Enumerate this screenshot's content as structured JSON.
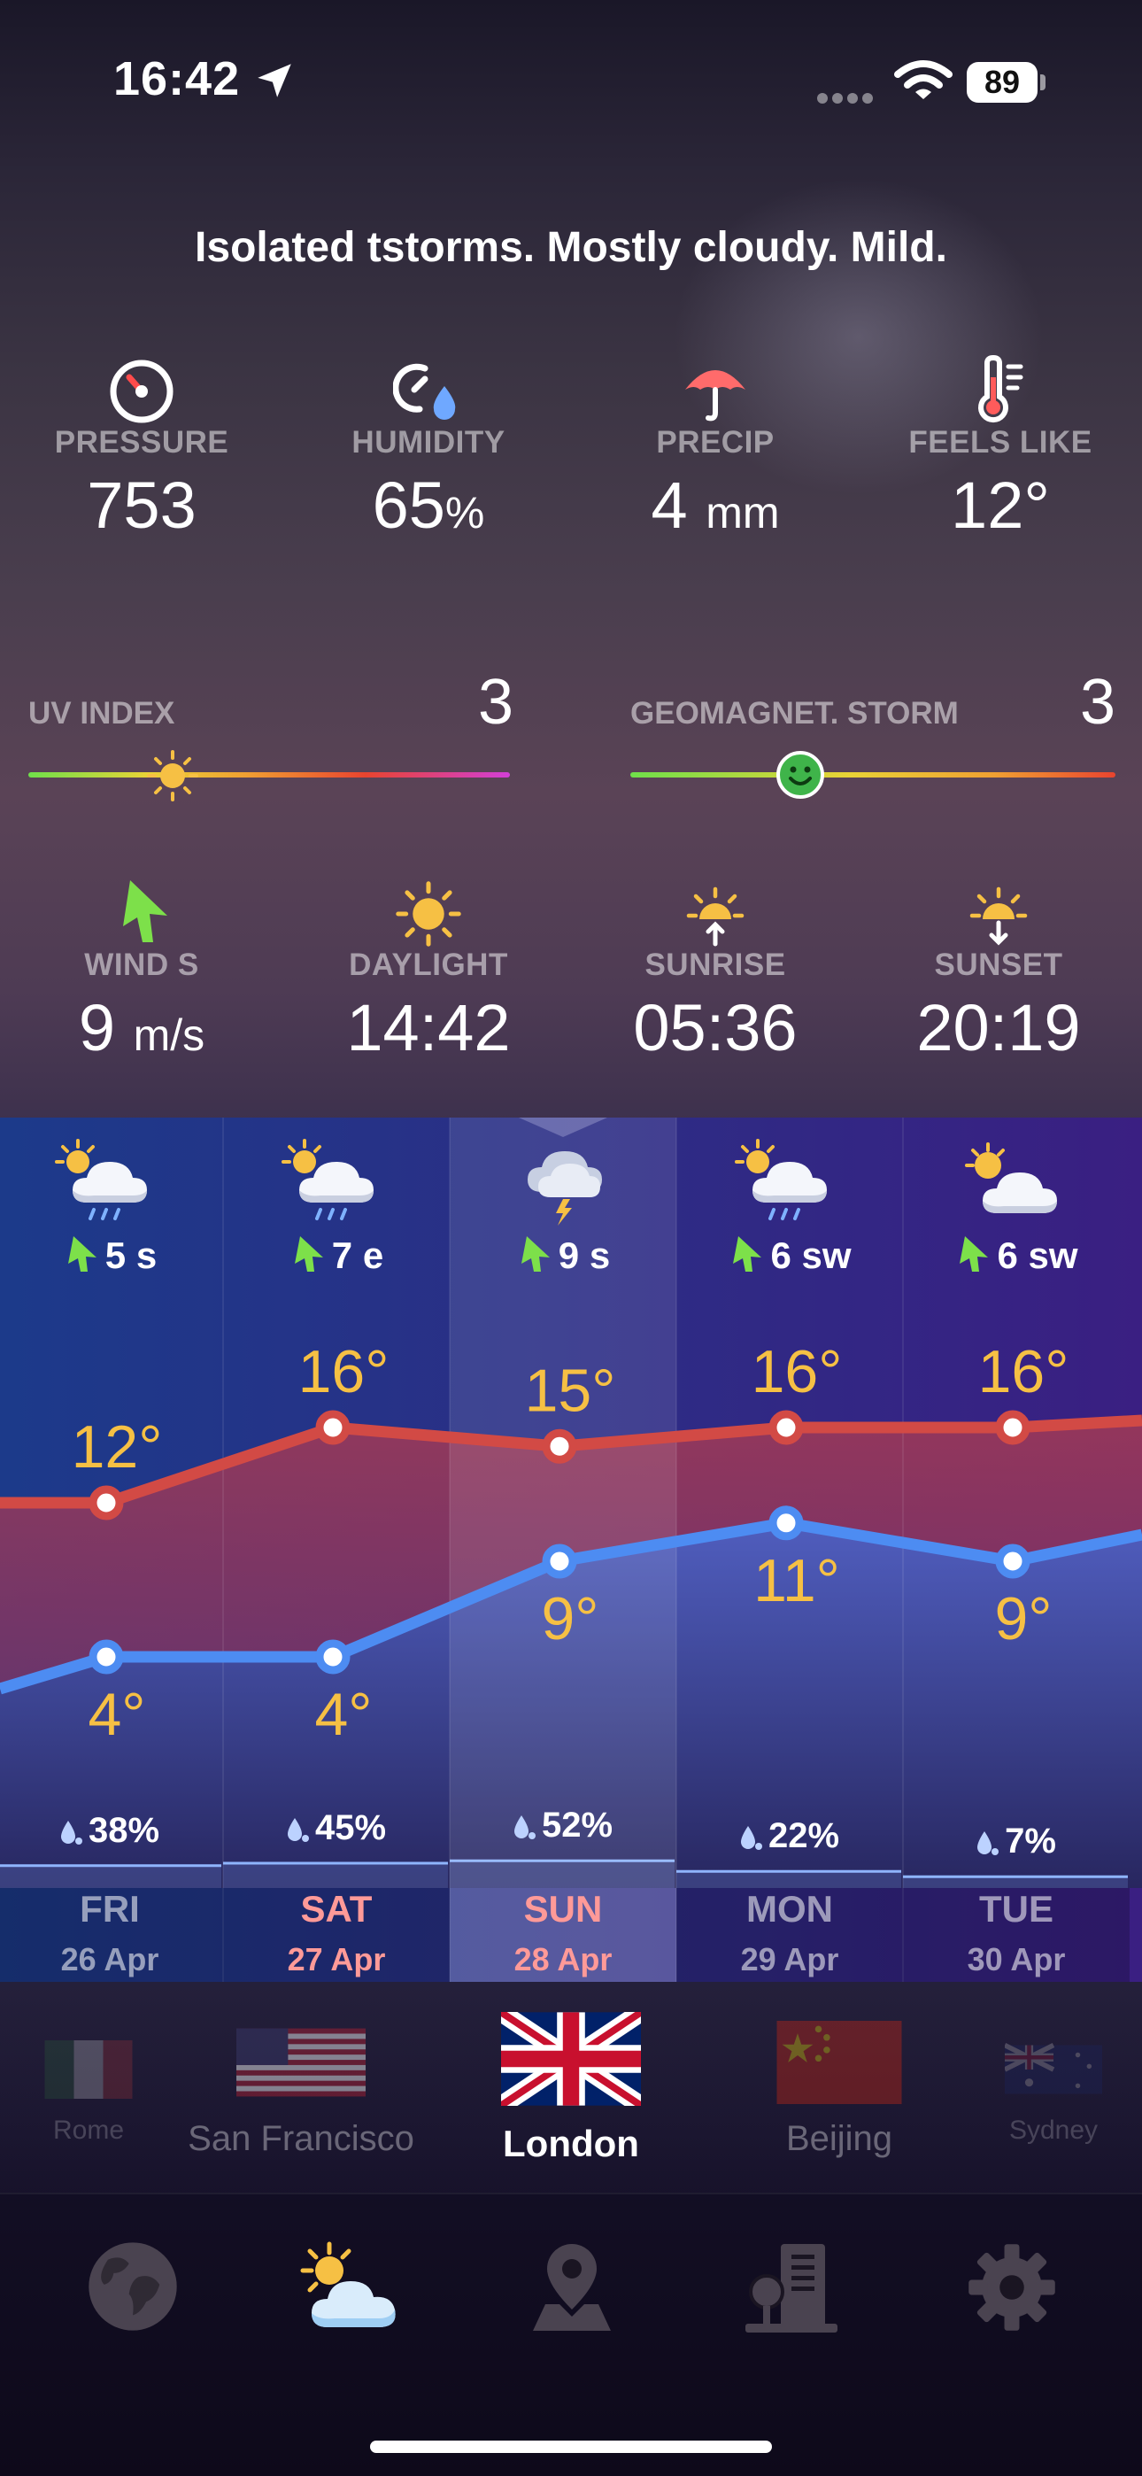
{
  "status_bar": {
    "time": "16:42",
    "battery": "89"
  },
  "summary": "Isolated tstorms. Mostly cloudy. Mild.",
  "stats_row1": [
    {
      "label": "PRESSURE",
      "value": "753",
      "unit": "",
      "icon": "pressure-gauge-icon"
    },
    {
      "label": "HUMIDITY",
      "value": "65",
      "unit": "%",
      "icon": "humidity-icon"
    },
    {
      "label": "PRECIP",
      "value": "4",
      "unit": "mm",
      "icon": "umbrella-icon"
    },
    {
      "label": "FEELS LIKE",
      "value": "12°",
      "unit": "",
      "icon": "thermometer-icon"
    }
  ],
  "uv": {
    "label": "UV INDEX",
    "value": "3",
    "level": 0.3
  },
  "geomagnetic": {
    "label": "GEOMAGNET. STORM",
    "value": "3",
    "level": 0.35
  },
  "stats_row2": [
    {
      "label": "WIND S",
      "value": "9",
      "unit": "m/s",
      "icon": "wind-arrow-icon"
    },
    {
      "label": "DAYLIGHT",
      "value": "14:42",
      "unit": "",
      "icon": "sun-icon"
    },
    {
      "label": "SUNRISE",
      "value": "05:36",
      "unit": "",
      "icon": "sunrise-icon"
    },
    {
      "label": "SUNSET",
      "value": "20:19",
      "unit": "",
      "icon": "sunset-icon"
    }
  ],
  "forecast": {
    "days": [
      {
        "day": "FRI",
        "date": "26 Apr",
        "wind": "5 s",
        "high": 12,
        "low": 4,
        "high_label": "12°",
        "low_label": "4°",
        "precip": "38%",
        "icon": "sun-cloud-rain-icon",
        "weekend": false
      },
      {
        "day": "SAT",
        "date": "27 Apr",
        "wind": "7 e",
        "high": 16,
        "low": 4,
        "high_label": "16°",
        "low_label": "4°",
        "precip": "45%",
        "icon": "sun-cloud-rain-icon",
        "weekend": true
      },
      {
        "day": "SUN",
        "date": "28 Apr",
        "wind": "9 s",
        "high": 15,
        "low": 9,
        "high_label": "15°",
        "low_label": "9°",
        "precip": "52%",
        "icon": "cloud-thunder-icon",
        "weekend": true
      },
      {
        "day": "MON",
        "date": "29 Apr",
        "wind": "6 sw",
        "high": 16,
        "low": 11,
        "high_label": "16°",
        "low_label": "11°",
        "precip": "22%",
        "icon": "sun-cloud-rain-icon",
        "weekend": false
      },
      {
        "day": "TUE",
        "date": "30 Apr",
        "wind": "6 sw",
        "high": 16,
        "low": 9,
        "high_label": "16°",
        "low_label": "9°",
        "precip": "7%",
        "icon": "sun-cloud-icon",
        "weekend": false
      }
    ],
    "selected_index": 2
  },
  "cities": [
    {
      "name": "Rome",
      "flag": "italy-flag-icon"
    },
    {
      "name": "San Francisco",
      "flag": "usa-flag-icon"
    },
    {
      "name": "London",
      "flag": "uk-flag-icon"
    },
    {
      "name": "Beijing",
      "flag": "china-flag-icon"
    },
    {
      "name": "Sydney",
      "flag": "australia-flag-icon"
    }
  ],
  "selected_city": "London",
  "tabs": [
    {
      "icon": "globe-icon"
    },
    {
      "icon": "weather-icon",
      "active": true
    },
    {
      "icon": "map-pin-icon"
    },
    {
      "icon": "radar-tower-icon"
    },
    {
      "icon": "gear-icon"
    }
  ]
}
